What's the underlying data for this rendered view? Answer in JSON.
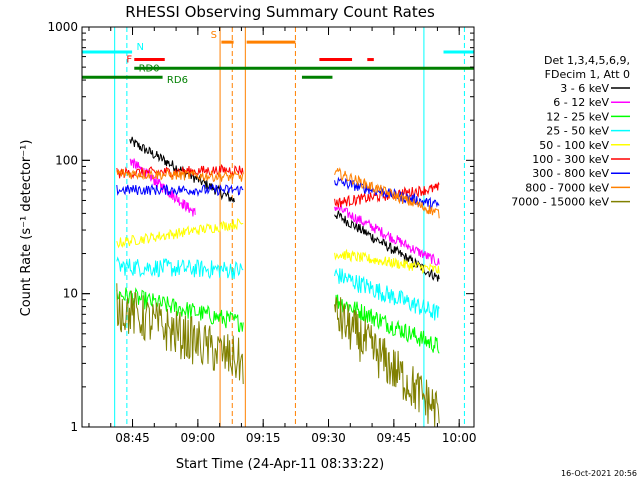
{
  "chart_data": {
    "type": "line",
    "title": "RHESSI Observing Summary Count Rates",
    "xlabel": "Start Time (24-Apr-11 08:33:22)",
    "ylabel": "Count Rate (s⁻¹ detector⁻¹)",
    "y_scale": "log",
    "ylim": [
      1,
      1000
    ],
    "xlim_minutes": [
      0,
      90
    ],
    "x_ticks": [
      {
        "label": "08:45",
        "minute": 11.6
      },
      {
        "label": "09:00",
        "minute": 26.6
      },
      {
        "label": "09:15",
        "minute": 41.6
      },
      {
        "label": "09:30",
        "minute": 56.6
      },
      {
        "label": "09:45",
        "minute": 71.6
      },
      {
        "label": "10:00",
        "minute": 86.6
      }
    ],
    "y_ticks": [
      {
        "label": "1",
        "value": 1
      },
      {
        "label": "10",
        "value": 10
      },
      {
        "label": "100",
        "value": 100
      },
      {
        "label": "1000",
        "value": 1000
      }
    ],
    "legend": {
      "placement": "right",
      "header": [
        "Det 1,3,4,5,6,9,",
        "FDecim 1, Att 0"
      ]
    },
    "series": [
      {
        "name": "3 - 6 keV",
        "color": "#000000",
        "segments": [
          [
            11,
            140,
            35,
            50
          ],
          [
            58,
            40,
            82,
            13
          ]
        ]
      },
      {
        "name": "6 - 12 keV",
        "color": "#ff00ff",
        "segments": [
          [
            11,
            100,
            26,
            40
          ],
          [
            58,
            45,
            82,
            17
          ]
        ]
      },
      {
        "name": "12 - 25 keV",
        "color": "#00ff00",
        "segments": [
          [
            8,
            10,
            37,
            6
          ],
          [
            58,
            9,
            82,
            4
          ]
        ]
      },
      {
        "name": "25 - 50 keV",
        "color": "#00ffff",
        "segments": [
          [
            8,
            16,
            37,
            15
          ],
          [
            58,
            14,
            82,
            7
          ]
        ]
      },
      {
        "name": "50 - 100 keV",
        "color": "#ffff00",
        "segments": [
          [
            8,
            24,
            37,
            34
          ],
          [
            58,
            20,
            82,
            15
          ]
        ]
      },
      {
        "name": "100 - 300 keV",
        "color": "#ff0000",
        "segments": [
          [
            8,
            80,
            37,
            85
          ],
          [
            58,
            48,
            82,
            62
          ]
        ]
      },
      {
        "name": "300 - 800 keV",
        "color": "#0000ff",
        "segments": [
          [
            8,
            60,
            37,
            60
          ],
          [
            58,
            70,
            82,
            46
          ]
        ]
      },
      {
        "name": "800 - 7000 keV",
        "color": "#ff8000",
        "segments": [
          [
            8,
            80,
            37,
            75
          ],
          [
            58,
            82,
            82,
            40
          ]
        ]
      },
      {
        "name": "7000 - 15000 keV",
        "color": "#808000",
        "segments": [
          [
            8,
            8,
            37,
            3
          ],
          [
            58,
            7,
            82,
            1.3
          ]
        ]
      }
    ],
    "flags": [
      {
        "label": "N",
        "color": "#00ffff",
        "value": 650,
        "spans": [
          [
            0,
            11.5
          ],
          [
            83,
            90
          ]
        ]
      },
      {
        "label": "F",
        "color": "#ff0000",
        "value": 570,
        "spans": [
          [
            12,
            19
          ],
          [
            54.5,
            62
          ],
          [
            65.5,
            67
          ]
        ]
      },
      {
        "label": "RD0",
        "color": "#008000",
        "value": 490,
        "spans": [
          [
            12,
            90
          ]
        ]
      },
      {
        "label": "RD6",
        "color": "#008000",
        "value": 420,
        "spans": [
          [
            0,
            18.5
          ],
          [
            50.5,
            57.5
          ]
        ]
      },
      {
        "label": "S",
        "color": "#ff8000",
        "value": 770,
        "spans": [
          [
            32,
            34.8
          ],
          [
            37.8,
            49
          ]
        ]
      }
    ],
    "vertical_lines": [
      {
        "minute": 10.3,
        "color": "#00ffff",
        "style": "dashed"
      },
      {
        "minute": 7.5,
        "color": "#00ffff",
        "style": "solid"
      },
      {
        "minute": 78.5,
        "color": "#00ffff",
        "style": "solid"
      },
      {
        "minute": 87.8,
        "color": "#00ffff",
        "style": "dashed"
      },
      {
        "minute": 31.7,
        "color": "#ff8000",
        "style": "solid"
      },
      {
        "minute": 34.5,
        "color": "#ff8000",
        "style": "dashed"
      },
      {
        "minute": 37.5,
        "color": "#ff8000",
        "style": "solid"
      },
      {
        "minute": 49.0,
        "color": "#ff8000",
        "style": "dashed"
      }
    ]
  },
  "footer": {
    "timestamp": "16-Oct-2021 20:56"
  }
}
